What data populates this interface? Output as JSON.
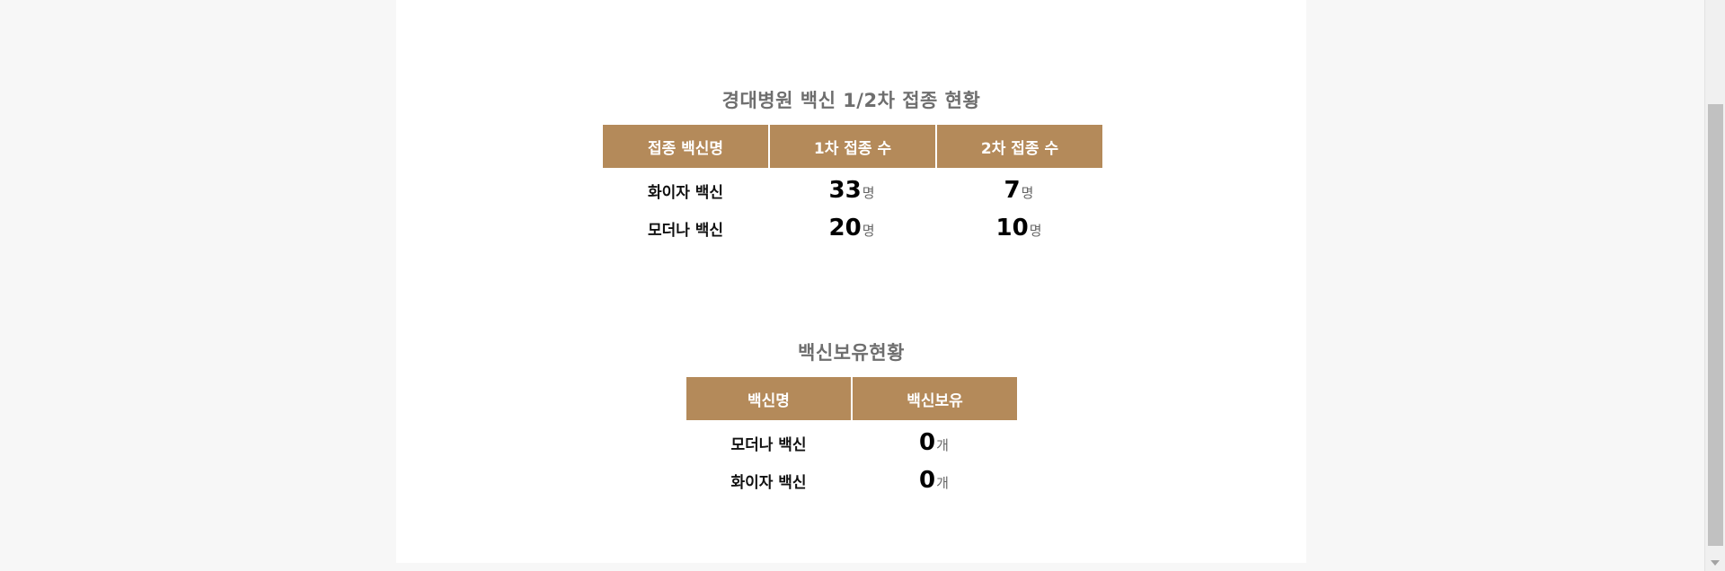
{
  "section1": {
    "title": "경대병원 백신 1/2차 접종 현황",
    "headers": [
      "접종 백신명",
      "1차 접종 수",
      "2차 접종 수"
    ],
    "rows": [
      {
        "name": "화이자 백신",
        "first": "33",
        "second": "7"
      },
      {
        "name": "모더나 백신",
        "first": "20",
        "second": "10"
      }
    ],
    "unit": "명"
  },
  "section2": {
    "title": "백신보유현황",
    "headers": [
      "백신명",
      "백신보유"
    ],
    "rows": [
      {
        "name": "모더나 백신",
        "stock": "0"
      },
      {
        "name": "화이자 백신",
        "stock": "0"
      }
    ],
    "unit": "개"
  },
  "colors": {
    "header_bg": "#b48a5a",
    "header_text": "#ffffff",
    "title_text": "#6e6e6e",
    "page_bg": "#f7f7f7",
    "content_bg": "#ffffff"
  }
}
